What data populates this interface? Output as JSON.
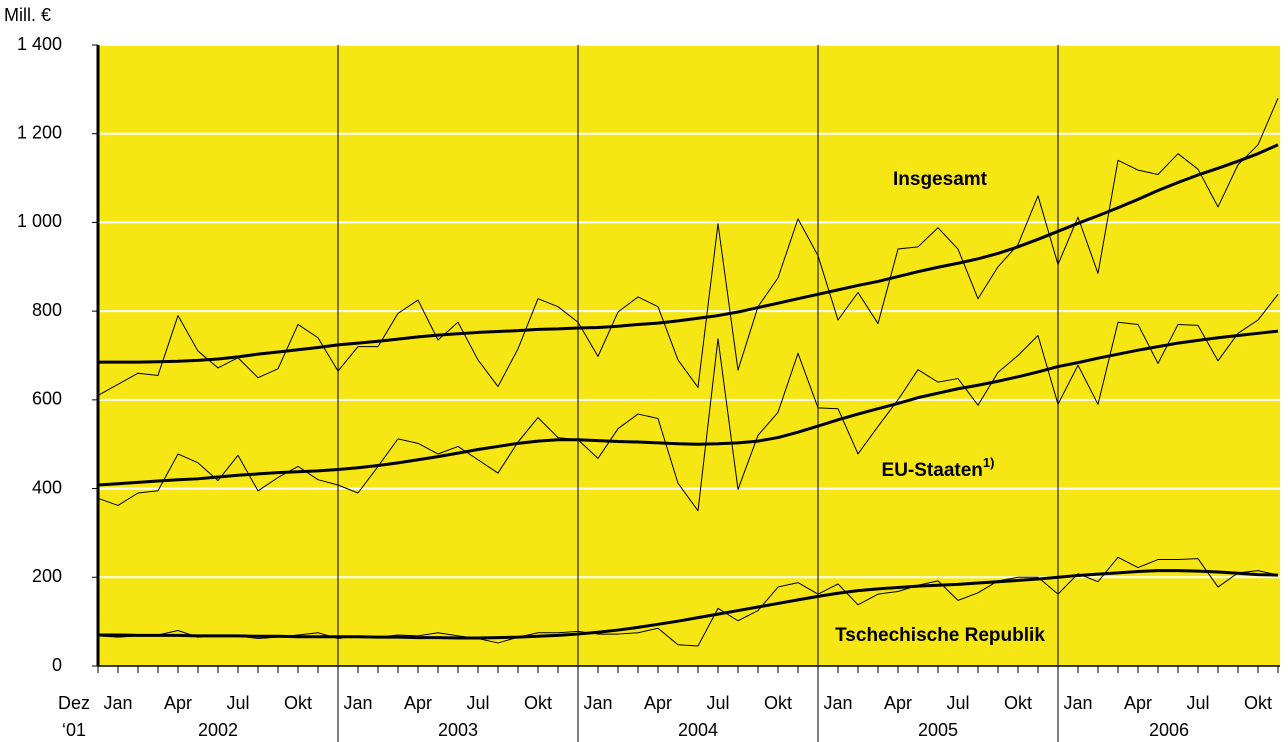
{
  "chart_data": {
    "type": "line",
    "y_label": "Mill. €",
    "categories": [
      "Dez",
      "Jan",
      null,
      null,
      "Apr",
      null,
      null,
      "Jul",
      null,
      null,
      "Okt",
      null,
      null,
      "Jan",
      null,
      null,
      "Apr",
      null,
      null,
      "Jul",
      null,
      null,
      "Okt",
      null,
      null,
      "Jan",
      null,
      null,
      "Apr",
      null,
      null,
      "Jul",
      null,
      null,
      "Okt",
      null,
      null,
      "Jan",
      null,
      null,
      "Apr",
      null,
      null,
      "Jul",
      null,
      null,
      "Okt",
      null,
      null,
      "Jan",
      null,
      null,
      "Apr",
      null,
      null,
      "Jul",
      null,
      null,
      "Okt",
      null
    ],
    "year_labels": [
      "‘01",
      "2002",
      "2003",
      "2004",
      "2005",
      "2006"
    ],
    "series": [
      {
        "name": "Insgesamt",
        "color": "#000000",
        "values": [
          610,
          635,
          660,
          655,
          790,
          710,
          672,
          695,
          650,
          670,
          770,
          740,
          665,
          720,
          720,
          795,
          825,
          735,
          775,
          690,
          630,
          715,
          828,
          810,
          775,
          698,
          798,
          832,
          810,
          690,
          628,
          997,
          667,
          810,
          875,
          1008,
          925,
          780,
          842,
          772,
          940,
          945,
          988,
          940,
          828,
          900,
          950,
          1060,
          905,
          1012,
          885,
          1140,
          1118,
          1108,
          1155,
          1120,
          1035,
          1130,
          1175,
          1280
        ],
        "trend": [
          685,
          685,
          685,
          686,
          687,
          689,
          692,
          697,
          703,
          708,
          713,
          718,
          724,
          728,
          732,
          737,
          742,
          746,
          749,
          752,
          754,
          756,
          759,
          760,
          762,
          763,
          766,
          770,
          773,
          778,
          784,
          790,
          798,
          808,
          818,
          828,
          838,
          848,
          858,
          867,
          878,
          889,
          899,
          908,
          918,
          930,
          945,
          962,
          980,
          998,
          1015,
          1033,
          1052,
          1072,
          1090,
          1107,
          1122,
          1138,
          1155,
          1175
        ]
      },
      {
        "name": "EU-Staaten",
        "note": "1)",
        "color": "#000000",
        "values": [
          378,
          362,
          390,
          395,
          478,
          458,
          418,
          475,
          395,
          425,
          450,
          420,
          408,
          390,
          450,
          512,
          502,
          478,
          495,
          465,
          435,
          505,
          560,
          515,
          510,
          468,
          535,
          568,
          558,
          412,
          350,
          738,
          398,
          520,
          572,
          705,
          582,
          580,
          478,
          540,
          600,
          668,
          640,
          648,
          588,
          662,
          700,
          745,
          590,
          678,
          590,
          775,
          770,
          682,
          770,
          768,
          688,
          750,
          780,
          838
        ],
        "trend": [
          408,
          411,
          414,
          417,
          420,
          422,
          426,
          430,
          433,
          436,
          438,
          440,
          443,
          447,
          452,
          458,
          465,
          472,
          480,
          488,
          495,
          502,
          507,
          510,
          510,
          508,
          506,
          505,
          503,
          501,
          500,
          501,
          503,
          507,
          515,
          527,
          541,
          555,
          568,
          580,
          592,
          605,
          615,
          625,
          633,
          642,
          652,
          663,
          675,
          684,
          694,
          703,
          712,
          720,
          728,
          734,
          740,
          745,
          750,
          755
        ]
      },
      {
        "name": "Tschechische Republik",
        "color": "#000000",
        "values": [
          68,
          65,
          68,
          70,
          80,
          65,
          70,
          68,
          62,
          65,
          70,
          75,
          62,
          68,
          65,
          70,
          68,
          75,
          68,
          62,
          52,
          65,
          75,
          75,
          78,
          72,
          72,
          75,
          85,
          48,
          45,
          130,
          102,
          125,
          178,
          188,
          162,
          185,
          138,
          162,
          168,
          182,
          192,
          148,
          165,
          192,
          200,
          200,
          162,
          208,
          190,
          245,
          222,
          240,
          240,
          242,
          178,
          210,
          215,
          205
        ],
        "trend": [
          70,
          70,
          69,
          69,
          69,
          68,
          68,
          68,
          67,
          67,
          66,
          66,
          66,
          66,
          65,
          65,
          64,
          64,
          63,
          63,
          64,
          65,
          67,
          69,
          72,
          76,
          81,
          87,
          94,
          101,
          109,
          117,
          125,
          133,
          141,
          149,
          157,
          164,
          170,
          174,
          177,
          180,
          182,
          184,
          187,
          190,
          193,
          196,
          200,
          204,
          207,
          210,
          213,
          215,
          215,
          214,
          212,
          209,
          206,
          205
        ]
      }
    ],
    "ylim": [
      0,
      1400
    ],
    "yticks": [
      0,
      200,
      400,
      600,
      800,
      {
        "value": 1000,
        "label": "1 000"
      },
      {
        "value": 1200,
        "label": "1 200"
      },
      {
        "value": 1400,
        "label": "1 400"
      }
    ],
    "grid": true,
    "background": "#f5e614"
  }
}
